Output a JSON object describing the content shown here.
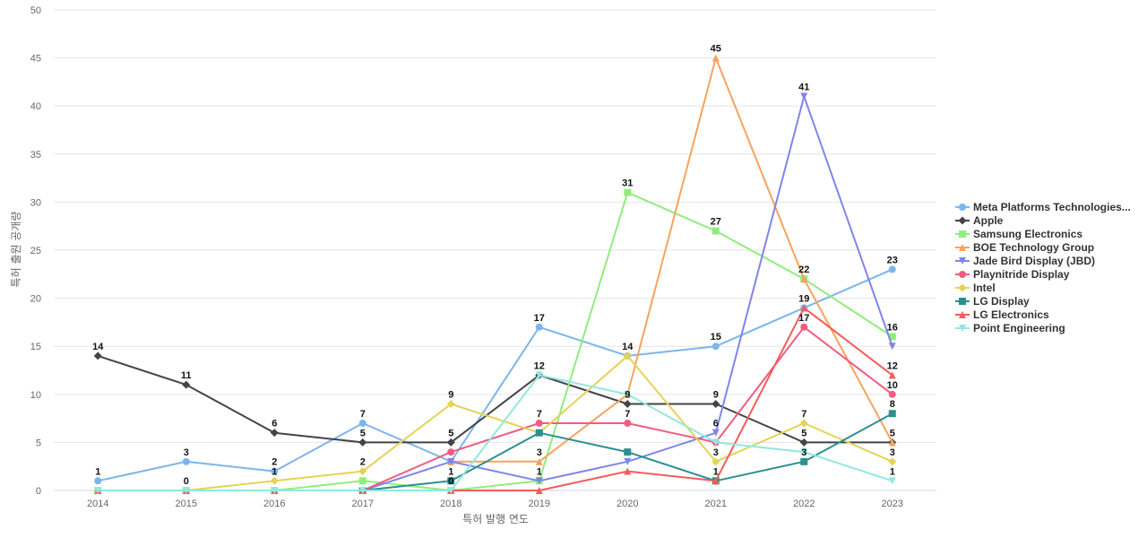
{
  "chart_data": {
    "type": "line",
    "title": "",
    "xlabel": "특허 발행 연도",
    "ylabel": "특허 출원 공개량",
    "x": [
      "2014",
      "2015",
      "2016",
      "2017",
      "2018",
      "2019",
      "2020",
      "2021",
      "2022",
      "2023"
    ],
    "ylim": [
      0,
      50
    ],
    "yticks": [
      0,
      5,
      10,
      15,
      20,
      25,
      30,
      35,
      40,
      45,
      50
    ],
    "grid": true,
    "legend_position": "right",
    "series": [
      {
        "name": "Meta Platforms Technologies...",
        "color": "#7cb5ec",
        "marker": "circle",
        "values": [
          1,
          3,
          2,
          7,
          3,
          17,
          14,
          15,
          19,
          23
        ],
        "labels": [
          true,
          true,
          true,
          true,
          false,
          true,
          false,
          true,
          true,
          true
        ]
      },
      {
        "name": "Apple",
        "color": "#434348",
        "marker": "diamond",
        "values": [
          14,
          11,
          6,
          5,
          5,
          12,
          9,
          9,
          5,
          5
        ],
        "labels": [
          true,
          true,
          true,
          true,
          true,
          true,
          true,
          true,
          true,
          true
        ]
      },
      {
        "name": "Samsung Electronics",
        "color": "#90ed7d",
        "marker": "square",
        "values": [
          0,
          0,
          0,
          1,
          0,
          1,
          31,
          27,
          22,
          16
        ],
        "labels": [
          false,
          false,
          false,
          false,
          false,
          false,
          true,
          true,
          true,
          true
        ]
      },
      {
        "name": "BOE Technology Group",
        "color": "#f7a35c",
        "marker": "triangle",
        "values": [
          null,
          null,
          null,
          null,
          3,
          3,
          10,
          45,
          22,
          5
        ],
        "labels": [
          false,
          false,
          false,
          false,
          false,
          true,
          false,
          true,
          false,
          false
        ]
      },
      {
        "name": "Jade Bird Display (JBD)",
        "color": "#8085e9",
        "marker": "triangle-down",
        "values": [
          null,
          null,
          null,
          0,
          3,
          1,
          3,
          6,
          41,
          15
        ],
        "labels": [
          false,
          false,
          false,
          false,
          false,
          true,
          false,
          true,
          true,
          false
        ]
      },
      {
        "name": "Playnitride Display",
        "color": "#f15c80",
        "marker": "circle",
        "values": [
          null,
          null,
          null,
          0,
          4,
          7,
          7,
          5,
          17,
          10
        ],
        "labels": [
          false,
          false,
          false,
          false,
          false,
          true,
          true,
          false,
          true,
          true
        ]
      },
      {
        "name": "Intel",
        "color": "#e4d354",
        "marker": "diamond",
        "values": [
          null,
          0,
          1,
          2,
          9,
          6,
          14,
          3,
          7,
          3
        ],
        "labels": [
          false,
          true,
          true,
          true,
          true,
          false,
          true,
          true,
          true,
          true
        ]
      },
      {
        "name": "LG Display",
        "color": "#2b908f",
        "marker": "square",
        "values": [
          null,
          null,
          null,
          0,
          1,
          6,
          4,
          1,
          3,
          8
        ],
        "labels": [
          false,
          false,
          false,
          false,
          true,
          false,
          false,
          true,
          true,
          true
        ]
      },
      {
        "name": "LG Electronics",
        "color": "#f45b5b",
        "marker": "triangle",
        "values": [
          0,
          0,
          0,
          0,
          0,
          0,
          2,
          1,
          19,
          12
        ],
        "labels": [
          false,
          false,
          false,
          false,
          true,
          false,
          false,
          false,
          false,
          true
        ]
      },
      {
        "name": "Point Engineering",
        "color": "#91e8e1",
        "marker": "triangle-down",
        "values": [
          0,
          0,
          0,
          0,
          0,
          12,
          10,
          5,
          4,
          1
        ],
        "labels": [
          false,
          false,
          false,
          false,
          true,
          false,
          false,
          false,
          false,
          true
        ]
      }
    ]
  }
}
